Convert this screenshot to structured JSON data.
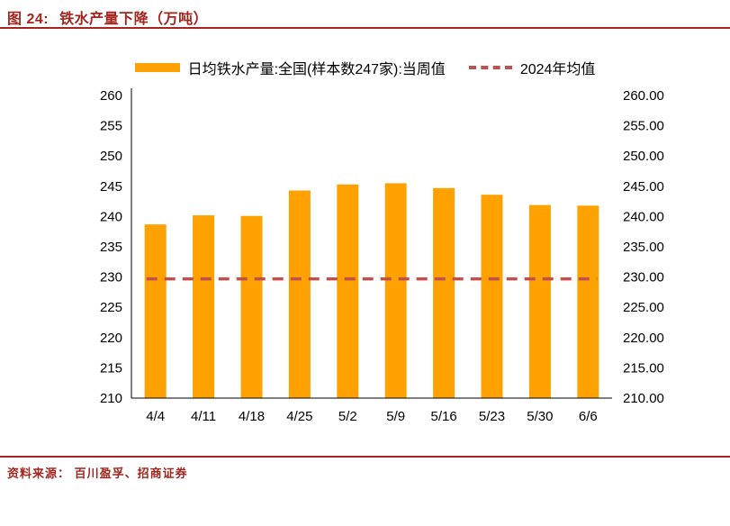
{
  "header": {
    "figure_label": "图 24:",
    "title": "铁水产量下降（万吨）"
  },
  "legend": {
    "bar_label": "日均铁水产量:全国(样本数247家):当周值",
    "line_label": "2024年均值"
  },
  "footer": {
    "source": "资料来源： 百川盈孚、招商证券"
  },
  "colors": {
    "bar": "#FFA200",
    "avg_line": "#C0504D",
    "title": "#A3251E",
    "rule": "#A3251E",
    "axis": "#000000"
  },
  "chart_data": {
    "type": "bar",
    "title": "铁水产量下降（万吨）",
    "xlabel": "",
    "ylabel": "",
    "categories": [
      "4/4",
      "4/11",
      "4/18",
      "4/25",
      "5/2",
      "5/9",
      "5/16",
      "5/23",
      "5/30",
      "6/6"
    ],
    "series": [
      {
        "name": "日均铁水产量:全国(样本数247家):当周值",
        "type": "bar",
        "color": "#FFA200",
        "values": [
          238.7,
          240.2,
          240.1,
          244.3,
          245.3,
          245.5,
          244.7,
          243.6,
          241.9,
          241.8
        ]
      },
      {
        "name": "2024年均值",
        "type": "dashed-line",
        "color": "#C0504D",
        "value": 229.7
      }
    ],
    "ylim": [
      210,
      260
    ],
    "ytick_step": 5,
    "ytick_values": [
      210,
      215,
      220,
      225,
      230,
      235,
      240,
      245,
      250,
      255,
      260
    ],
    "right_axis_format": "two-decimals",
    "grid": false,
    "legend_position": "top"
  }
}
